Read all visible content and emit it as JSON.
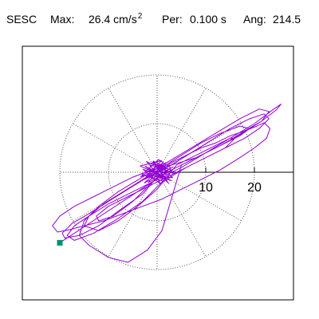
{
  "header": {
    "station": "SESC",
    "max_label": "Max:",
    "max_value": "26.4 cm/s",
    "max_exp": "2",
    "per_label": "Per:",
    "per_value": "0.100 s",
    "ang_label": "Ang:",
    "ang_value": "214.5"
  },
  "chart_data": {
    "type": "line",
    "subtype": "polar particle-motion hodogram",
    "unit": "cm/s^2",
    "rings": [
      10,
      20
    ],
    "ring_labels": [
      "10",
      "20"
    ],
    "spokes_deg": [
      0,
      30,
      60,
      90,
      120,
      150,
      180,
      210,
      240,
      270,
      300,
      330
    ],
    "axis_range": [
      -20,
      28
    ],
    "grid": "dotted",
    "series": [
      {
        "color": "#9400d3",
        "x": [
          0,
          -2.5,
          1.9,
          -0.8,
          2.1,
          -3.4,
          1.2,
          -1.8,
          3.1,
          -0.5,
          2.6,
          -2.9,
          0.7,
          -1.4,
          3.5,
          -2.2,
          1.5,
          -3.1,
          0.3,
          2.8,
          -1.1,
          3.3,
          -2.6,
          1.8,
          -0.4,
          2.9,
          -3.5,
          0.9,
          -1.9,
          3.2,
          0.2,
          -2.7,
          1.4,
          -0.9,
          2.4,
          0,
          3,
          6,
          9,
          12,
          15,
          18,
          20.5,
          22,
          23.2,
          22.5,
          20,
          17,
          13,
          9,
          5,
          1,
          -3,
          -7,
          -11,
          -15,
          -18,
          -20.5,
          -21.5,
          -20,
          -17,
          -13,
          -9,
          -5,
          -1,
          3,
          8,
          13,
          17.5,
          21.5,
          24.5,
          25.5,
          24,
          20,
          15,
          10,
          5,
          0,
          -5,
          -10,
          -14,
          -17,
          -18.5,
          -17,
          -13,
          -8,
          -3,
          1,
          6,
          10,
          14,
          18,
          21,
          23,
          22,
          19,
          15,
          11,
          7,
          3,
          -2,
          -6,
          -10,
          -14,
          -17.5,
          -19.5,
          -19,
          -16,
          -12,
          -8,
          -3,
          0,
          4,
          9,
          14,
          18,
          21.5,
          23,
          21,
          17,
          12,
          7,
          2,
          -3,
          -8,
          -12,
          -15,
          -16,
          -14,
          -10,
          -6,
          -2,
          1,
          5,
          9,
          13,
          17,
          19,
          17,
          13,
          9,
          5,
          1,
          -3,
          -7,
          -11,
          -14,
          -15,
          -12,
          -8,
          -4,
          0,
          4,
          8,
          12,
          15,
          16,
          14,
          10,
          6,
          2,
          -2,
          -6,
          -10,
          -12.5,
          -12,
          -9,
          -5,
          -1,
          -20
        ],
        "y": [
          0,
          1.2,
          -1.6,
          2.3,
          0.8,
          -0.9,
          1.9,
          -2.1,
          0.4,
          1.7,
          -1.2,
          0.6,
          -2.4,
          1.5,
          -0.3,
          2.2,
          -1.9,
          -0.5,
          2.6,
          0.9,
          -1.4,
          1.1,
          -2.2,
          2.0,
          -0.8,
          -1.7,
          1.3,
          2.4,
          -0.6,
          -1.1,
          1.8,
          -1.5,
          0.5,
          2.1,
          -2.3,
          0,
          2,
          3.5,
          5,
          6,
          7.5,
          8.5,
          9.5,
          10.2,
          9,
          7,
          5,
          3,
          0.5,
          -1.5,
          -3.5,
          -5.5,
          -7,
          -8.5,
          -10,
          -11,
          -11.8,
          -12.3,
          -11,
          -9,
          -7,
          -5,
          -3,
          -1,
          0.5,
          1.5,
          3,
          5.5,
          8,
          10.5,
          12.8,
          14,
          13,
          10,
          7,
          4,
          1,
          -1.5,
          -4,
          -6.5,
          -9,
          -11,
          -13,
          -14,
          -12.5,
          -9.5,
          -6,
          -2,
          1,
          3,
          5,
          7,
          9,
          11,
          12,
          11,
          9,
          6.5,
          4,
          1.5,
          -1,
          -3.5,
          -6,
          -8.5,
          -10.5,
          -12.5,
          -13.5,
          -13,
          -11,
          -8,
          -4.5,
          -1,
          1,
          3.5,
          6,
          8.5,
          10.5,
          12.5,
          13,
          11,
          8,
          5,
          2,
          -1,
          -4,
          -7,
          -10,
          -13,
          -15,
          -17.5,
          -18.5,
          -16,
          -12,
          1.5,
          3.5,
          5.5,
          7.5,
          9,
          9.5,
          8,
          6,
          3.5,
          1,
          -1.5,
          -4,
          -6.5,
          -9,
          -11,
          -12,
          -10,
          -7,
          -3.5,
          1.5,
          3.5,
          5.5,
          7,
          7,
          5,
          3,
          1,
          -1,
          -3,
          -5,
          -7,
          -9,
          -10,
          -9,
          -6,
          -2,
          -14.5
        ]
      }
    ],
    "end_marker": {
      "x": -20,
      "y": -14.5,
      "color": "#009070"
    }
  }
}
